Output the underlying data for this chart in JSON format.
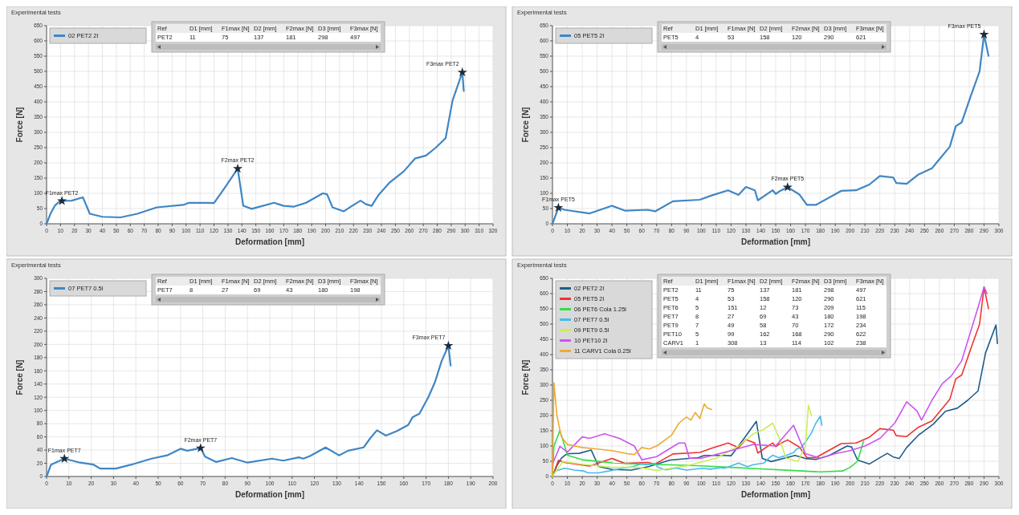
{
  "chart_data": [
    {
      "type": "line",
      "title": "Experimental tests",
      "xlabel": "Deformation [mm]",
      "ylabel": "Force [N]",
      "xlim": [
        0,
        320
      ],
      "ylim": [
        0,
        650
      ],
      "xticks": [
        0,
        10,
        20,
        30,
        40,
        50,
        60,
        70,
        80,
        90,
        100,
        110,
        120,
        130,
        140,
        150,
        160,
        170,
        180,
        190,
        200,
        210,
        220,
        230,
        240,
        250,
        260,
        270,
        280,
        290,
        300,
        310,
        320
      ],
      "yticks": [
        0,
        50,
        100,
        150,
        200,
        250,
        300,
        350,
        400,
        450,
        500,
        550,
        600,
        650
      ],
      "grid": true,
      "legend": "top left",
      "series": [
        {
          "name": "02 PET2 2l",
          "color": "#3f86c4",
          "x": [
            0,
            3,
            6,
            9,
            11,
            18,
            26,
            31,
            40,
            53,
            65,
            79,
            98,
            102,
            115,
            120,
            128,
            137,
            139,
            141,
            147,
            163,
            170,
            177,
            186,
            198,
            201,
            205,
            213,
            219,
            225,
            229,
            233,
            238,
            246,
            256,
            264,
            272,
            279,
            286,
            291,
            298,
            299
          ],
          "values": [
            0,
            35,
            60,
            72,
            75,
            76,
            87,
            33,
            23,
            21,
            33,
            54,
            62,
            69,
            69,
            68,
            120,
            181,
            120,
            59,
            49,
            69,
            59,
            56,
            69,
            100,
            97,
            54,
            41,
            59,
            76,
            64,
            59,
            95,
            136,
            172,
            214,
            224,
            250,
            281,
            405,
            497,
            436
          ]
        }
      ],
      "annotations": [
        "Ref",
        "D1 [mm]",
        "F1max [N]",
        "D2 [mm]",
        "F2max [N]",
        "D3 [mm]",
        "F3max [N]",
        "PET2",
        "11",
        "75",
        "137",
        "181",
        "298",
        "497",
        {
          "text": "F1max PET2",
          "x": 11,
          "y": 75
        },
        {
          "text": "F2max PET2",
          "x": 137,
          "y": 181
        },
        {
          "text": "F3max PET2",
          "x": 298,
          "y": 497
        }
      ]
    },
    {
      "type": "line",
      "title": "Experimental tests",
      "xlabel": "Deformation [mm]",
      "ylabel": "Force [N]",
      "xlim": [
        0,
        300
      ],
      "ylim": [
        0,
        650
      ],
      "xticks": [
        0,
        10,
        20,
        30,
        40,
        50,
        60,
        70,
        80,
        90,
        100,
        110,
        120,
        130,
        140,
        150,
        160,
        170,
        180,
        190,
        200,
        210,
        220,
        230,
        240,
        250,
        260,
        270,
        280,
        290,
        300
      ],
      "yticks": [
        0,
        50,
        100,
        150,
        200,
        250,
        300,
        350,
        400,
        450,
        500,
        550,
        600,
        650
      ],
      "grid": true,
      "legend": "top left",
      "series": [
        {
          "name": "05 PET5 2l",
          "color": "#3f86c4",
          "x": [
            0,
            4,
            8,
            25,
            40,
            49,
            64,
            69,
            81,
            99,
            107,
            118,
            125,
            130,
            136,
            138,
            148,
            150,
            153,
            158,
            166,
            171,
            177,
            194,
            204,
            213,
            220,
            229,
            231,
            238,
            246,
            255,
            259,
            267,
            271,
            275,
            281,
            287,
            290,
            293
          ],
          "values": [
            0,
            53,
            46,
            34,
            59,
            43,
            46,
            41,
            74,
            79,
            93,
            110,
            95,
            121,
            110,
            77,
            110,
            98,
            108,
            120,
            96,
            62,
            62,
            108,
            110,
            129,
            157,
            152,
            134,
            131,
            162,
            182,
            206,
            253,
            320,
            333,
            418,
            500,
            621,
            551
          ]
        }
      ],
      "annotations": [
        "Ref",
        "D1 [mm]",
        "F1max [N]",
        "D2 [mm]",
        "F2max [N]",
        "D3 [mm]",
        "F3max [N]",
        "PET5",
        "4",
        "53",
        "158",
        "120",
        "290",
        "621",
        {
          "text": "F1max PET5",
          "x": 4,
          "y": 53
        },
        {
          "text": "F2max PET5",
          "x": 158,
          "y": 120
        },
        {
          "text": "F3max PET5",
          "x": 290,
          "y": 621
        }
      ]
    },
    {
      "type": "line",
      "title": "Experimental tests",
      "xlabel": "Deformation [mm]",
      "ylabel": "Force [N]",
      "xlim": [
        0,
        200
      ],
      "ylim": [
        0,
        300
      ],
      "xticks": [
        0,
        10,
        20,
        30,
        40,
        50,
        60,
        70,
        80,
        90,
        100,
        110,
        120,
        130,
        140,
        150,
        160,
        170,
        180,
        190,
        200
      ],
      "yticks": [
        0,
        20,
        40,
        60,
        80,
        100,
        120,
        140,
        160,
        180,
        200,
        220,
        240,
        260,
        280,
        300
      ],
      "grid": true,
      "legend": "top left",
      "series": [
        {
          "name": "07 PET7 0.5l",
          "color": "#3f86c4",
          "x": [
            0,
            2,
            8,
            15,
            21,
            24,
            31,
            38,
            47,
            54,
            60,
            63,
            69,
            71,
            76,
            83,
            90,
            101,
            106,
            113,
            115,
            118,
            125,
            131,
            135,
            142,
            145,
            148,
            152,
            157,
            162,
            164,
            167,
            171,
            174,
            177,
            180,
            181
          ],
          "values": [
            0,
            18,
            27,
            21,
            18,
            12,
            12,
            18,
            27,
            32,
            42,
            39,
            43,
            30,
            22,
            28,
            21,
            27,
            24,
            29,
            27,
            31,
            44,
            32,
            39,
            44,
            58,
            70,
            62,
            69,
            78,
            90,
            95,
            120,
            143,
            175,
            198,
            168
          ]
        }
      ],
      "annotations": [
        "Ref",
        "D1 [mm]",
        "F1max [N]",
        "D2 [mm]",
        "F2max [N]",
        "D3 [mm]",
        "F3max [N]",
        "PET7",
        "8",
        "27",
        "69",
        "43",
        "180",
        "198",
        {
          "text": "F1max PET7",
          "x": 8,
          "y": 27
        },
        {
          "text": "F2max PET7",
          "x": 69,
          "y": 43
        },
        {
          "text": "F3max PET7",
          "x": 180,
          "y": 198
        }
      ]
    },
    {
      "type": "line",
      "title": "Experimental tests",
      "xlabel": "Deformation [mm]",
      "ylabel": "Force [N]",
      "xlim": [
        0,
        300
      ],
      "ylim": [
        0,
        650
      ],
      "xticks": [
        0,
        10,
        20,
        30,
        40,
        50,
        60,
        70,
        80,
        90,
        100,
        110,
        120,
        130,
        140,
        150,
        160,
        170,
        180,
        190,
        200,
        210,
        220,
        230,
        240,
        250,
        260,
        270,
        280,
        290,
        300
      ],
      "yticks": [
        0,
        50,
        100,
        150,
        200,
        250,
        300,
        350,
        400,
        450,
        500,
        550,
        600,
        650
      ],
      "grid": true,
      "legend": "top left",
      "series": [
        {
          "name": "02 PET2 2l",
          "color": "#1f5c8b",
          "x": [
            0,
            3,
            6,
            9,
            11,
            18,
            26,
            31,
            40,
            53,
            65,
            79,
            98,
            102,
            115,
            120,
            128,
            137,
            139,
            141,
            147,
            163,
            170,
            177,
            186,
            198,
            201,
            205,
            213,
            219,
            225,
            229,
            233,
            238,
            246,
            256,
            264,
            272,
            279,
            286,
            291,
            298,
            299
          ],
          "values": [
            0,
            35,
            60,
            72,
            75,
            76,
            87,
            33,
            23,
            21,
            33,
            54,
            62,
            69,
            69,
            68,
            120,
            181,
            120,
            59,
            49,
            69,
            59,
            56,
            69,
            100,
            97,
            54,
            41,
            59,
            76,
            64,
            59,
            95,
            136,
            172,
            214,
            224,
            250,
            281,
            405,
            497,
            436
          ]
        },
        {
          "name": "05 PET5 2l",
          "color": "#ee3333",
          "x": [
            0,
            4,
            8,
            25,
            40,
            49,
            64,
            69,
            81,
            99,
            107,
            118,
            125,
            130,
            136,
            138,
            148,
            150,
            153,
            158,
            166,
            171,
            177,
            194,
            204,
            213,
            220,
            229,
            231,
            238,
            246,
            255,
            259,
            267,
            271,
            275,
            281,
            287,
            290,
            293
          ],
          "values": [
            0,
            53,
            46,
            34,
            59,
            43,
            46,
            41,
            74,
            79,
            93,
            110,
            95,
            121,
            110,
            77,
            110,
            98,
            108,
            120,
            96,
            62,
            62,
            108,
            110,
            129,
            157,
            152,
            134,
            131,
            162,
            182,
            206,
            253,
            320,
            333,
            418,
            500,
            621,
            551
          ]
        },
        {
          "name": "06 PET6 Cola 1.25l",
          "color": "#33dd44",
          "x": [
            0,
            1,
            5,
            7,
            10,
            20,
            40,
            60,
            80,
            100,
            120,
            140,
            160,
            180,
            195,
            200,
            205,
            209
          ],
          "values": [
            0,
            100,
            151,
            120,
            70,
            55,
            45,
            40,
            38,
            35,
            30,
            25,
            20,
            15,
            18,
            30,
            50,
            115
          ]
        },
        {
          "name": "07 PET7 0.5l",
          "color": "#44bbee",
          "x": [
            0,
            2,
            8,
            15,
            21,
            24,
            31,
            38,
            47,
            54,
            60,
            63,
            69,
            71,
            76,
            83,
            90,
            101,
            106,
            113,
            115,
            118,
            125,
            131,
            135,
            142,
            145,
            148,
            152,
            157,
            162,
            164,
            167,
            171,
            174,
            177,
            180,
            181
          ],
          "values": [
            0,
            18,
            27,
            21,
            18,
            12,
            12,
            18,
            27,
            32,
            42,
            39,
            43,
            30,
            22,
            28,
            21,
            27,
            24,
            29,
            27,
            31,
            44,
            32,
            39,
            44,
            58,
            70,
            62,
            69,
            78,
            90,
            95,
            120,
            143,
            175,
            198,
            168
          ]
        },
        {
          "name": "09 PET9 0.5l",
          "color": "#ccee55",
          "x": [
            0,
            7,
            20,
            40,
            58,
            70,
            90,
            110,
            125,
            135,
            141,
            148,
            152,
            157,
            165,
            170,
            172,
            174
          ],
          "values": [
            0,
            49,
            40,
            30,
            30,
            20,
            35,
            60,
            100,
            140,
            152,
            175,
            130,
            60,
            50,
            100,
            234,
            200
          ]
        },
        {
          "name": "10 PET10 2l",
          "color": "#cc55ee",
          "x": [
            0,
            5,
            10,
            20,
            25,
            35,
            45,
            55,
            60,
            70,
            85,
            89,
            92,
            100,
            120,
            135,
            150,
            162,
            170,
            180,
            190,
            200,
            210,
            220,
            230,
            238,
            245,
            248,
            255,
            262,
            268,
            275,
            280,
            286,
            290,
            292
          ],
          "values": [
            40,
            99,
            80,
            130,
            125,
            140,
            125,
            100,
            55,
            65,
            110,
            110,
            60,
            60,
            85,
            105,
            100,
            168,
            75,
            60,
            75,
            85,
            100,
            125,
            175,
            245,
            215,
            185,
            250,
            305,
            330,
            380,
            460,
            555,
            622,
            600
          ]
        },
        {
          "name": "11 CARV1 Cola 0.25l",
          "color": "#eeaa33",
          "x": [
            0,
            1,
            3,
            6,
            10,
            20,
            30,
            40,
            50,
            55,
            60,
            65,
            70,
            80,
            85,
            90,
            93,
            96,
            99,
            102,
            104,
            107
          ],
          "values": [
            0,
            308,
            200,
            130,
            105,
            95,
            90,
            85,
            75,
            72,
            95,
            90,
            100,
            135,
            175,
            195,
            185,
            210,
            190,
            238,
            225,
            220
          ]
        }
      ],
      "annotations": [
        "Ref",
        "D1 [mm]",
        "F1max [N]",
        "D2 [mm]",
        "F2max [N]",
        "D3 [mm]",
        "F3max [N]",
        "PET2",
        "11",
        "75",
        "137",
        "181",
        "298",
        "497",
        "PET5",
        "4",
        "53",
        "158",
        "120",
        "290",
        "621",
        "PET6",
        "5",
        "151",
        "12",
        "73",
        "209",
        "115",
        "PET7",
        "8",
        "27",
        "69",
        "43",
        "180",
        "198",
        "PET9",
        "7",
        "49",
        "58",
        "70",
        "172",
        "234",
        "PET10",
        "5",
        "99",
        "162",
        "168",
        "290",
        "622",
        "CARV1",
        "1",
        "308",
        "13",
        "114",
        "102",
        "238"
      ]
    }
  ]
}
